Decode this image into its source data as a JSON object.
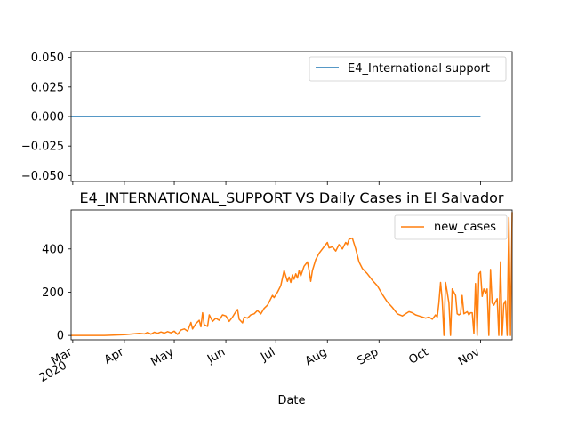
{
  "chart_data": [
    {
      "type": "line",
      "ylim": [
        -0.055,
        0.055
      ],
      "yticks": [
        {
          "v": -0.05,
          "label": "−0.050"
        },
        {
          "v": -0.025,
          "label": "−0.025"
        },
        {
          "v": 0.0,
          "label": "0.000"
        },
        {
          "v": 0.025,
          "label": "0.025"
        },
        {
          "v": 0.05,
          "label": "0.050"
        }
      ],
      "legend_position": "upper right",
      "series": [
        {
          "name": "E4_International support",
          "color": "#1f77b4",
          "x": [
            "2020-02-29",
            "2020-11-01"
          ],
          "values": [
            0,
            0
          ]
        }
      ]
    },
    {
      "type": "line",
      "title": "E4_INTERNATIONAL_SUPPORT VS Daily Cases in El Salvador",
      "xlabel": "Date",
      "ylim": [
        -20,
        580
      ],
      "yticks": [
        {
          "v": 0,
          "label": "0"
        },
        {
          "v": 200,
          "label": "200"
        },
        {
          "v": 400,
          "label": "400"
        }
      ],
      "xticks": [
        {
          "date": "2020-03-01",
          "label": "Mar",
          "sublabel": "2020"
        },
        {
          "date": "2020-04-01",
          "label": "Apr"
        },
        {
          "date": "2020-05-01",
          "label": "May"
        },
        {
          "date": "2020-06-01",
          "label": "Jun"
        },
        {
          "date": "2020-07-01",
          "label": "Jul"
        },
        {
          "date": "2020-08-01",
          "label": "Aug"
        },
        {
          "date": "2020-09-01",
          "label": "Sep"
        },
        {
          "date": "2020-10-01",
          "label": "Oct"
        },
        {
          "date": "2020-11-01",
          "label": "Nov"
        }
      ],
      "legend_position": "upper right",
      "series": [
        {
          "name": "new_cases",
          "color": "#ff7f0e",
          "points": [
            [
              "2020-02-29",
              0
            ],
            [
              "2020-03-20",
              0
            ],
            [
              "2020-03-27",
              2
            ],
            [
              "2020-04-01",
              4
            ],
            [
              "2020-04-04",
              6
            ],
            [
              "2020-04-07",
              8
            ],
            [
              "2020-04-10",
              10
            ],
            [
              "2020-04-13",
              7
            ],
            [
              "2020-04-15",
              14
            ],
            [
              "2020-04-17",
              6
            ],
            [
              "2020-04-19",
              15
            ],
            [
              "2020-04-21",
              10
            ],
            [
              "2020-04-23",
              16
            ],
            [
              "2020-04-25",
              11
            ],
            [
              "2020-04-27",
              18
            ],
            [
              "2020-04-29",
              12
            ],
            [
              "2020-05-01",
              20
            ],
            [
              "2020-05-03",
              5
            ],
            [
              "2020-05-05",
              25
            ],
            [
              "2020-05-07",
              30
            ],
            [
              "2020-05-09",
              20
            ],
            [
              "2020-05-10",
              40
            ],
            [
              "2020-05-11",
              60
            ],
            [
              "2020-05-12",
              30
            ],
            [
              "2020-05-14",
              55
            ],
            [
              "2020-05-16",
              70
            ],
            [
              "2020-05-17",
              40
            ],
            [
              "2020-05-18",
              105
            ],
            [
              "2020-05-19",
              50
            ],
            [
              "2020-05-21",
              42
            ],
            [
              "2020-05-22",
              95
            ],
            [
              "2020-05-24",
              65
            ],
            [
              "2020-05-26",
              80
            ],
            [
              "2020-05-28",
              70
            ],
            [
              "2020-05-30",
              95
            ],
            [
              "2020-06-01",
              90
            ],
            [
              "2020-06-03",
              65
            ],
            [
              "2020-06-05",
              85
            ],
            [
              "2020-06-07",
              110
            ],
            [
              "2020-06-08",
              120
            ],
            [
              "2020-06-09",
              75
            ],
            [
              "2020-06-11",
              58
            ],
            [
              "2020-06-12",
              85
            ],
            [
              "2020-06-14",
              80
            ],
            [
              "2020-06-16",
              95
            ],
            [
              "2020-06-18",
              100
            ],
            [
              "2020-06-20",
              115
            ],
            [
              "2020-06-22",
              100
            ],
            [
              "2020-06-24",
              125
            ],
            [
              "2020-06-26",
              140
            ],
            [
              "2020-06-28",
              170
            ],
            [
              "2020-06-29",
              185
            ],
            [
              "2020-06-30",
              175
            ],
            [
              "2020-07-02",
              200
            ],
            [
              "2020-07-04",
              230
            ],
            [
              "2020-07-06",
              300
            ],
            [
              "2020-07-08",
              250
            ],
            [
              "2020-07-09",
              270
            ],
            [
              "2020-07-10",
              245
            ],
            [
              "2020-07-11",
              280
            ],
            [
              "2020-07-12",
              260
            ],
            [
              "2020-07-13",
              285
            ],
            [
              "2020-07-14",
              265
            ],
            [
              "2020-07-15",
              300
            ],
            [
              "2020-07-16",
              275
            ],
            [
              "2020-07-18",
              320
            ],
            [
              "2020-07-20",
              340
            ],
            [
              "2020-07-21",
              300
            ],
            [
              "2020-07-22",
              250
            ],
            [
              "2020-07-23",
              300
            ],
            [
              "2020-07-25",
              350
            ],
            [
              "2020-07-27",
              380
            ],
            [
              "2020-07-29",
              400
            ],
            [
              "2020-08-01",
              430
            ],
            [
              "2020-08-02",
              405
            ],
            [
              "2020-08-04",
              410
            ],
            [
              "2020-08-06",
              390
            ],
            [
              "2020-08-08",
              420
            ],
            [
              "2020-08-10",
              400
            ],
            [
              "2020-08-12",
              430
            ],
            [
              "2020-08-13",
              420
            ],
            [
              "2020-08-14",
              445
            ],
            [
              "2020-08-16",
              450
            ],
            [
              "2020-08-18",
              400
            ],
            [
              "2020-08-20",
              340
            ],
            [
              "2020-08-22",
              310
            ],
            [
              "2020-08-25",
              285
            ],
            [
              "2020-08-28",
              255
            ],
            [
              "2020-08-31",
              230
            ],
            [
              "2020-09-03",
              190
            ],
            [
              "2020-09-06",
              155
            ],
            [
              "2020-09-09",
              130
            ],
            [
              "2020-09-12",
              100
            ],
            [
              "2020-09-15",
              90
            ],
            [
              "2020-09-17",
              100
            ],
            [
              "2020-09-19",
              110
            ],
            [
              "2020-09-21",
              105
            ],
            [
              "2020-09-23",
              95
            ],
            [
              "2020-09-25",
              90
            ],
            [
              "2020-09-27",
              85
            ],
            [
              "2020-09-29",
              80
            ],
            [
              "2020-10-01",
              85
            ],
            [
              "2020-10-03",
              75
            ],
            [
              "2020-10-05",
              95
            ],
            [
              "2020-10-06",
              85
            ],
            [
              "2020-10-07",
              150
            ],
            [
              "2020-10-08",
              245
            ],
            [
              "2020-10-09",
              160
            ],
            [
              "2020-10-10",
              0
            ],
            [
              "2020-10-11",
              245
            ],
            [
              "2020-10-12",
              200
            ],
            [
              "2020-10-13",
              150
            ],
            [
              "2020-10-14",
              0
            ],
            [
              "2020-10-15",
              215
            ],
            [
              "2020-10-17",
              185
            ],
            [
              "2020-10-18",
              100
            ],
            [
              "2020-10-19",
              95
            ],
            [
              "2020-10-20",
              100
            ],
            [
              "2020-10-21",
              185
            ],
            [
              "2020-10-22",
              100
            ],
            [
              "2020-10-23",
              105
            ],
            [
              "2020-10-24",
              110
            ],
            [
              "2020-10-25",
              95
            ],
            [
              "2020-10-26",
              105
            ],
            [
              "2020-10-27",
              105
            ],
            [
              "2020-10-28",
              10
            ],
            [
              "2020-10-29",
              240
            ],
            [
              "2020-10-30",
              0
            ],
            [
              "2020-10-31",
              285
            ],
            [
              "2020-11-01",
              295
            ],
            [
              "2020-11-02",
              180
            ],
            [
              "2020-11-03",
              215
            ],
            [
              "2020-11-04",
              195
            ],
            [
              "2020-11-05",
              215
            ],
            [
              "2020-11-06",
              0
            ],
            [
              "2020-11-07",
              305
            ],
            [
              "2020-11-08",
              150
            ],
            [
              "2020-11-09",
              140
            ],
            [
              "2020-11-10",
              155
            ],
            [
              "2020-11-11",
              170
            ],
            [
              "2020-11-12",
              0
            ],
            [
              "2020-11-13",
              340
            ],
            [
              "2020-11-14",
              0
            ],
            [
              "2020-11-15",
              145
            ],
            [
              "2020-11-16",
              160
            ],
            [
              "2020-11-17",
              0
            ],
            [
              "2020-11-18",
              545
            ],
            [
              "2020-11-19",
              0
            ],
            [
              "2020-11-20",
              570
            ]
          ]
        }
      ]
    }
  ]
}
